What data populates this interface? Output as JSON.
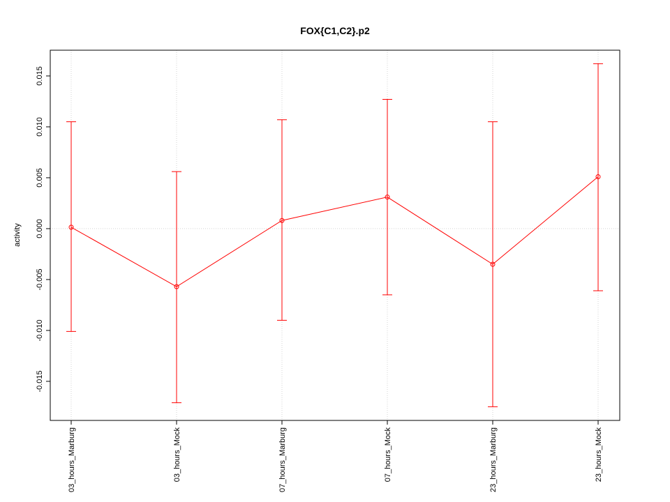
{
  "chart_data": {
    "type": "line",
    "title": "FOX{C1,C2}.p2",
    "y_label": "activity",
    "categories": [
      "03_hours_Marburg",
      "03_hours_Mock",
      "07_hours_Marburg",
      "07_hours_Mock",
      "23_hours_Marburg",
      "23_hours_Mock"
    ],
    "series": [
      {
        "color": "#ff0000",
        "values": [
          0.00014,
          -0.0057,
          0.0008,
          0.0031,
          -0.0035,
          0.0051
        ],
        "lower": [
          -0.0101,
          -0.0171,
          -0.009,
          -0.0065,
          -0.0175,
          -0.0061
        ],
        "upper": [
          0.0105,
          0.0056,
          0.0107,
          0.0127,
          0.0105,
          0.0162
        ]
      }
    ],
    "ylim": [
      -0.01884,
      0.01753
    ],
    "yticks": [
      {
        "value": -0.015,
        "label": "-0.015"
      },
      {
        "value": -0.01,
        "label": "-0.010"
      },
      {
        "value": -0.005,
        "label": "-0.005"
      },
      {
        "value": 0,
        "label": "0.000"
      },
      {
        "value": 0.005,
        "label": "0.005"
      },
      {
        "value": 0.01,
        "label": "0.010"
      },
      {
        "value": 0.015,
        "label": "0.015"
      }
    ],
    "grid": true,
    "reference_line": 0
  }
}
